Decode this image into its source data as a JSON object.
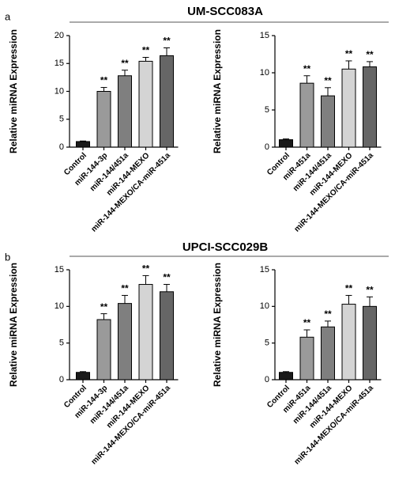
{
  "panels": [
    {
      "label": "a",
      "title": "UM-SCC083A"
    },
    {
      "label": "b",
      "title": "UPCI-SCC029B"
    }
  ],
  "chart_data": [
    {
      "type": "bar",
      "ylabel": "Relative miRNA Expression",
      "categories": [
        "Control",
        "miR-144-3p",
        "miR-144/451a",
        "miR-144-MEXO",
        "miR-144-MEXO/CA-miR-451a"
      ],
      "values": [
        1.0,
        10.0,
        12.8,
        15.4,
        16.4
      ],
      "errors": [
        0.1,
        0.7,
        1.0,
        0.7,
        1.4
      ],
      "colors": [
        "#1a1a1a",
        "#9a9a9a",
        "#7f7f7f",
        "#d4d4d4",
        "#666666"
      ],
      "significance": [
        null,
        "**",
        "**",
        "**",
        "**"
      ],
      "ylim": [
        0,
        20
      ],
      "yticks": [
        0,
        5,
        10,
        15,
        20
      ]
    },
    {
      "type": "bar",
      "ylabel": "Relative miRNA Expression",
      "categories": [
        "Control",
        "miR-451a",
        "miR-144/451a",
        "miR-144-MEXO",
        "miR-144-MEXO/CA-miR-451a"
      ],
      "values": [
        1.0,
        8.6,
        6.9,
        10.5,
        10.8
      ],
      "errors": [
        0.1,
        1.0,
        1.1,
        1.1,
        0.7
      ],
      "colors": [
        "#1a1a1a",
        "#9a9a9a",
        "#7f7f7f",
        "#d4d4d4",
        "#666666"
      ],
      "significance": [
        null,
        "**",
        "**",
        "**",
        "**"
      ],
      "ylim": [
        0,
        15
      ],
      "yticks": [
        0,
        5,
        10,
        15
      ]
    },
    {
      "type": "bar",
      "ylabel": "Relative miRNA Expression",
      "categories": [
        "Control",
        "miR-144-3p",
        "miR-144/451a",
        "miR-144-MEXO",
        "miR-144-MEXO/CA-miR-451a"
      ],
      "values": [
        1.0,
        8.2,
        10.4,
        13.0,
        12.0
      ],
      "errors": [
        0.1,
        0.8,
        1.1,
        1.2,
        1.0
      ],
      "colors": [
        "#1a1a1a",
        "#9a9a9a",
        "#7f7f7f",
        "#d4d4d4",
        "#666666"
      ],
      "significance": [
        null,
        "**",
        "**",
        "**",
        "**"
      ],
      "ylim": [
        0,
        15
      ],
      "yticks": [
        0,
        5,
        10,
        15
      ]
    },
    {
      "type": "bar",
      "ylabel": "Relative miRNA Expression",
      "categories": [
        "Control",
        "miR-451a",
        "miR-144/451a",
        "miR-144-MEXO",
        "miR-144-MEXO/CA-miR-451a"
      ],
      "values": [
        1.0,
        5.8,
        7.2,
        10.3,
        10.0
      ],
      "errors": [
        0.1,
        1.0,
        0.8,
        1.2,
        1.3
      ],
      "colors": [
        "#1a1a1a",
        "#9a9a9a",
        "#7f7f7f",
        "#d4d4d4",
        "#666666"
      ],
      "significance": [
        null,
        "**",
        "**",
        "**",
        "**"
      ],
      "ylim": [
        0,
        15
      ],
      "yticks": [
        0,
        5,
        10,
        15
      ]
    }
  ]
}
